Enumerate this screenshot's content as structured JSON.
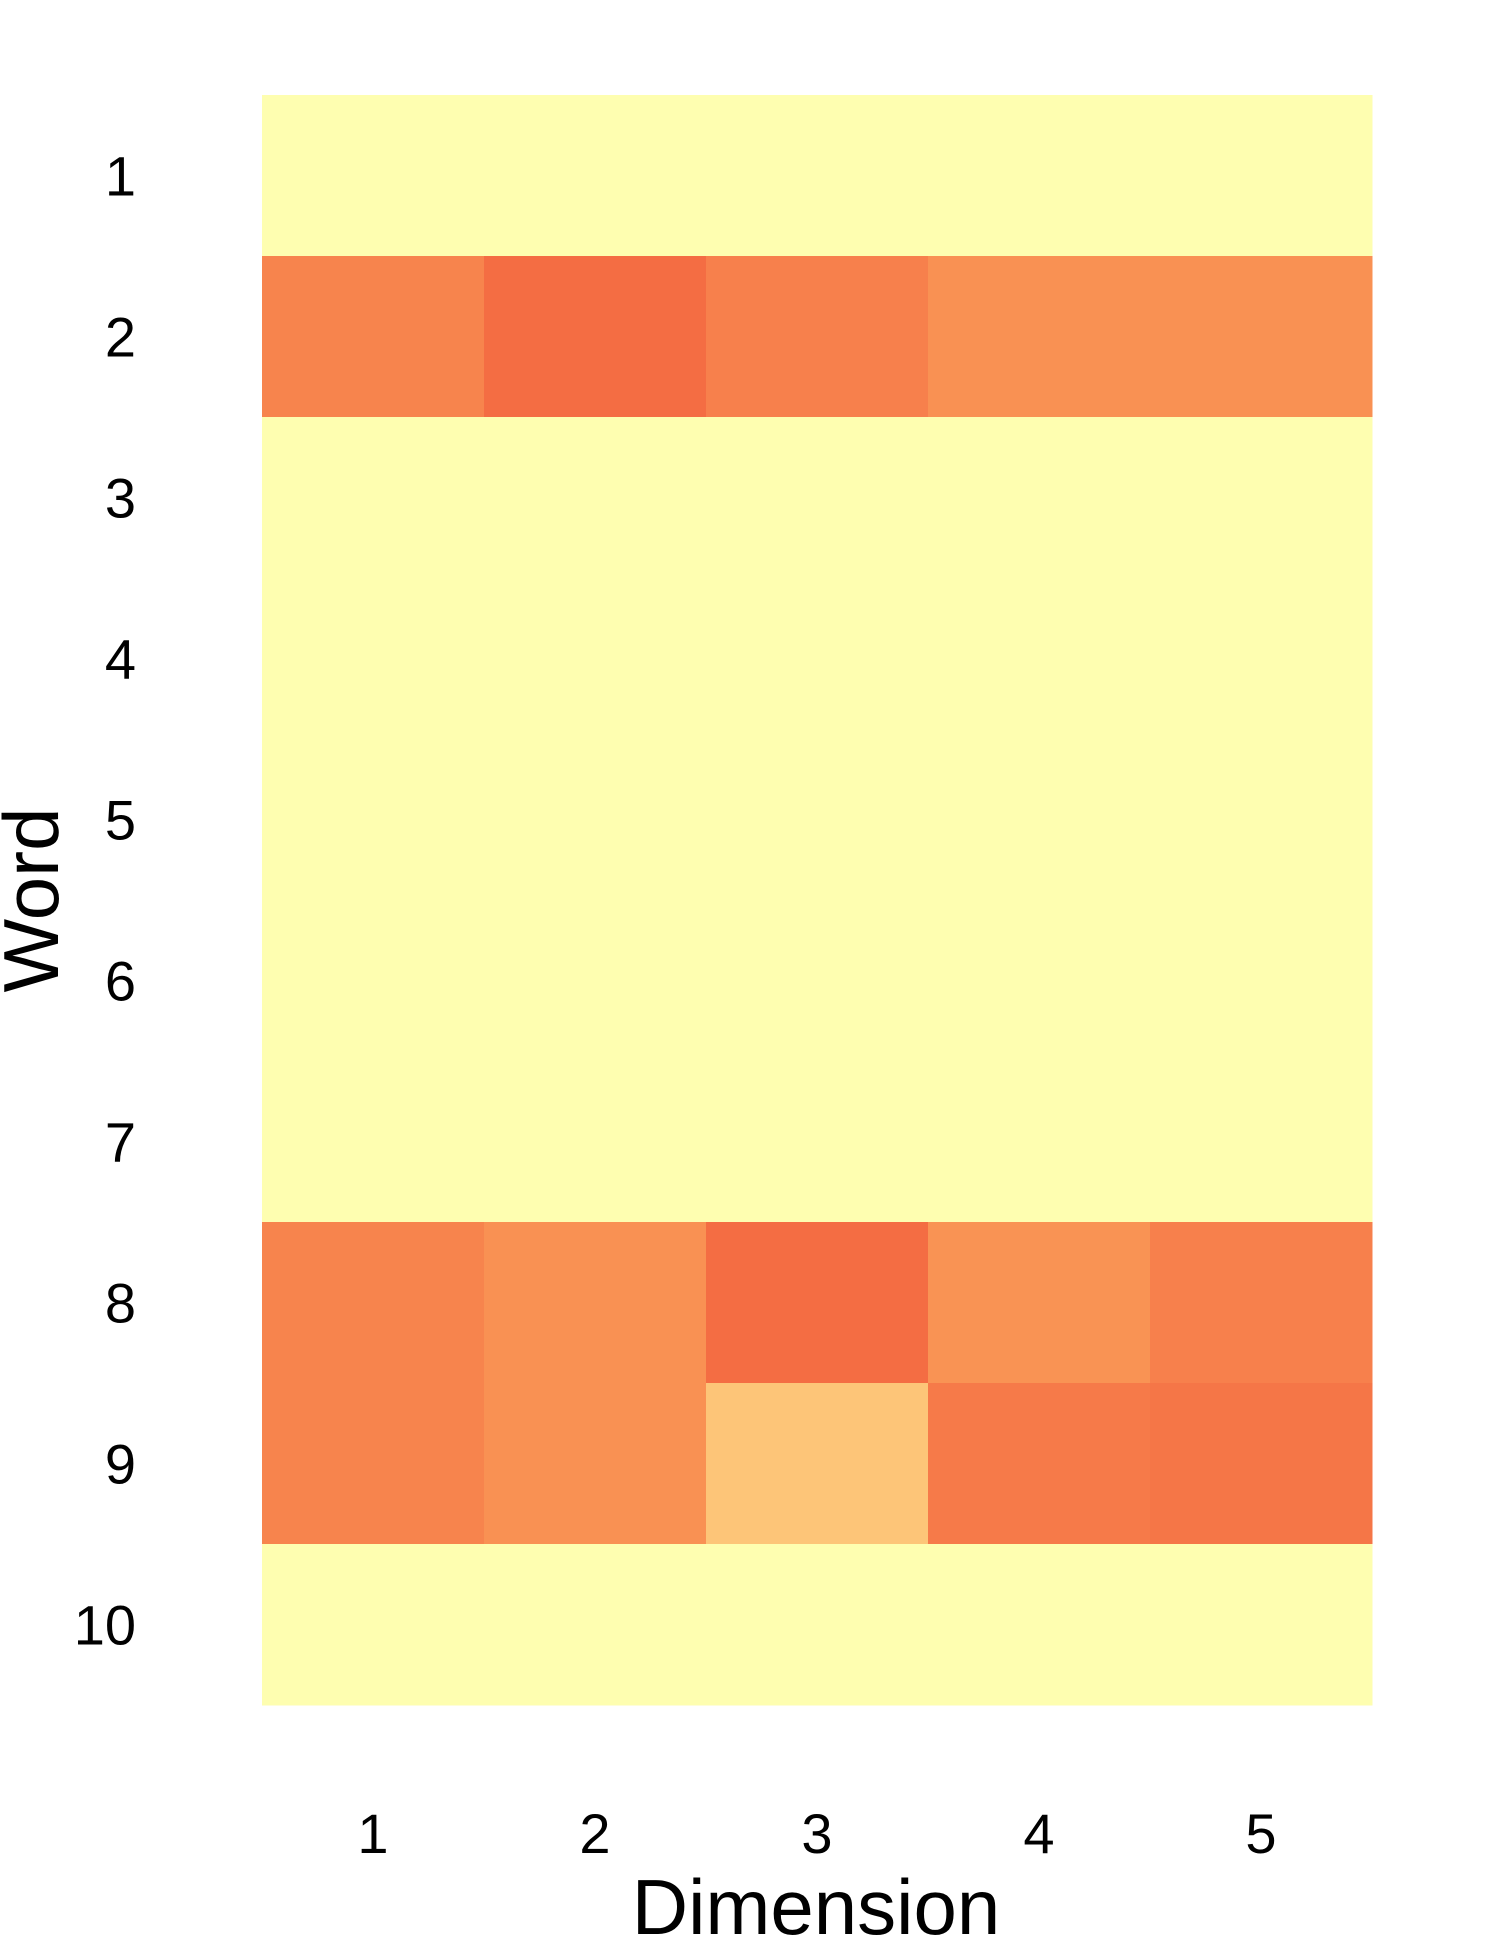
{
  "chart_data": {
    "type": "heatmap",
    "xlabel": "Dimension",
    "ylabel": "Word",
    "x_categories": [
      "1",
      "2",
      "3",
      "4",
      "5"
    ],
    "y_categories": [
      "1",
      "2",
      "3",
      "4",
      "5",
      "6",
      "7",
      "8",
      "9",
      "10"
    ],
    "colorscale": [
      "#fefeb0",
      "#fdad60",
      "#f46d43"
    ],
    "values": [
      [
        0.0,
        0.0,
        0.0,
        0.0,
        0.0
      ],
      [
        0.82,
        1.0,
        0.85,
        0.72,
        0.72
      ],
      [
        0.0,
        0.0,
        0.0,
        0.0,
        0.0
      ],
      [
        0.0,
        0.0,
        0.0,
        0.0,
        0.0
      ],
      [
        0.0,
        0.0,
        0.0,
        0.0,
        0.0
      ],
      [
        0.0,
        0.0,
        0.0,
        0.0,
        0.0
      ],
      [
        0.0,
        0.0,
        0.0,
        0.0,
        0.0
      ],
      [
        0.82,
        0.72,
        1.0,
        0.7,
        0.85
      ],
      [
        0.82,
        0.72,
        0.35,
        0.9,
        0.93
      ],
      [
        0.0,
        0.0,
        0.0,
        0.0,
        0.0
      ]
    ]
  }
}
